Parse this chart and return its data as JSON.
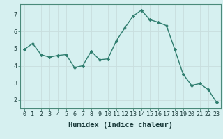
{
  "x": [
    0,
    1,
    2,
    3,
    4,
    5,
    6,
    7,
    8,
    9,
    10,
    11,
    12,
    13,
    14,
    15,
    16,
    17,
    18,
    19,
    20,
    21,
    22,
    23
  ],
  "y": [
    4.95,
    5.3,
    4.65,
    4.5,
    4.6,
    4.65,
    3.9,
    4.0,
    4.85,
    4.35,
    4.4,
    5.45,
    6.2,
    6.9,
    7.25,
    6.7,
    6.55,
    6.35,
    4.95,
    3.5,
    2.85,
    2.95,
    2.6,
    1.85
  ],
  "line_color": "#2e7d6e",
  "marker": "D",
  "marker_size": 2.2,
  "bg_color": "#d6f0f0",
  "grid_color": "#c8dede",
  "xlabel": "Humidex (Indice chaleur)",
  "xlim": [
    -0.5,
    23.5
  ],
  "ylim": [
    1.5,
    7.6
  ],
  "yticks": [
    2,
    3,
    4,
    5,
    6,
    7
  ],
  "xticks": [
    0,
    1,
    2,
    3,
    4,
    5,
    6,
    7,
    8,
    9,
    10,
    11,
    12,
    13,
    14,
    15,
    16,
    17,
    18,
    19,
    20,
    21,
    22,
    23
  ],
  "tick_fontsize": 6.0,
  "xlabel_fontsize": 7.5,
  "line_width": 1.0
}
